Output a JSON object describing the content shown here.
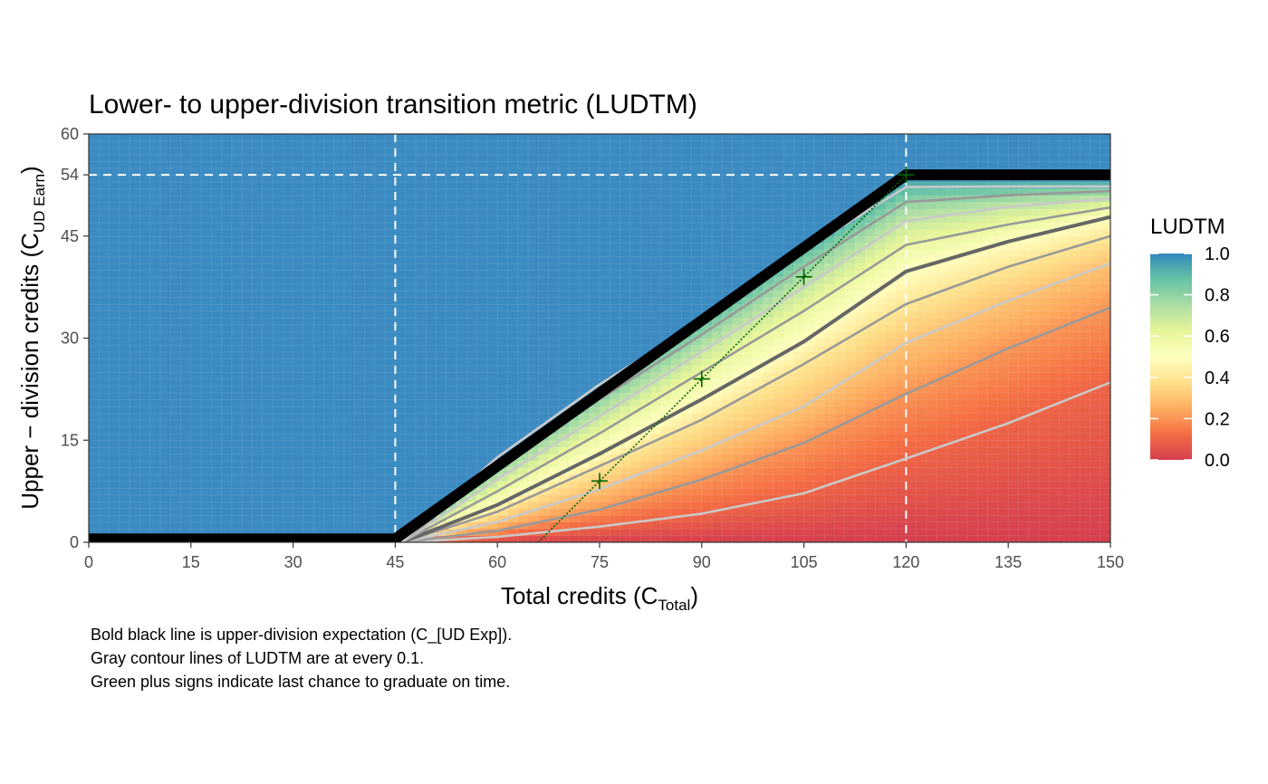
{
  "chart_data": {
    "type": "heatmap",
    "title": "Lower- to upper-division transition metric (LUDTM)",
    "xlabel": {
      "main": "Total credits (C",
      "sub": "Total",
      "close": ")"
    },
    "ylabel": {
      "main": "Upper − division credits (C",
      "sub": "UD Earn",
      "close": ")"
    },
    "xlim": [
      0,
      150
    ],
    "ylim": [
      0,
      60
    ],
    "x_ticks": [
      0,
      15,
      30,
      45,
      60,
      75,
      90,
      105,
      120,
      135,
      150
    ],
    "y_ticks": [
      0,
      15,
      30,
      45,
      54,
      60
    ],
    "grid": false,
    "reference_lines": {
      "vertical": [
        45,
        120
      ],
      "horizontal": [
        54
      ],
      "style": "white dashed"
    },
    "expectation_line": {
      "description": "bold black line",
      "points": [
        [
          0,
          0.5
        ],
        [
          45,
          0.5
        ],
        [
          120,
          54
        ],
        [
          150,
          54
        ]
      ]
    },
    "last_chance_line": {
      "color": "#006400",
      "points": [
        [
          66,
          0
        ],
        [
          120,
          54
        ]
      ],
      "markers": [
        [
          75,
          9
        ],
        [
          90,
          24
        ],
        [
          105,
          39
        ],
        [
          120,
          54
        ]
      ]
    },
    "contour_levels": [
      0.1,
      0.2,
      0.3,
      0.4,
      0.5,
      0.6,
      0.7,
      0.8,
      0.9
    ],
    "contour_lines": [
      {
        "level": 0.1,
        "points": [
          [
            46,
            0
          ],
          [
            60,
            0.8
          ],
          [
            75,
            2.3
          ],
          [
            90,
            4.2
          ],
          [
            105,
            7.2
          ],
          [
            120,
            12.3
          ],
          [
            135,
            17.5
          ],
          [
            150,
            23.5
          ]
        ]
      },
      {
        "level": 0.2,
        "points": [
          [
            46,
            0
          ],
          [
            60,
            1.7
          ],
          [
            75,
            4.8
          ],
          [
            90,
            9.2
          ],
          [
            105,
            14.6
          ],
          [
            120,
            21.8
          ],
          [
            135,
            28.5
          ],
          [
            150,
            34.5
          ]
        ]
      },
      {
        "level": 0.3,
        "points": [
          [
            46,
            0
          ],
          [
            60,
            3
          ],
          [
            75,
            7.8
          ],
          [
            90,
            13.5
          ],
          [
            105,
            20
          ],
          [
            120,
            29.3
          ],
          [
            135,
            35.5
          ],
          [
            150,
            41
          ]
        ]
      },
      {
        "level": 0.4,
        "points": [
          [
            46,
            0
          ],
          [
            60,
            4.5
          ],
          [
            75,
            11.2
          ],
          [
            90,
            18
          ],
          [
            105,
            26.2
          ],
          [
            120,
            35
          ],
          [
            135,
            40.5
          ],
          [
            150,
            45
          ]
        ]
      },
      {
        "level": 0.5,
        "points": [
          [
            46,
            0
          ],
          [
            60,
            5.5
          ],
          [
            75,
            13
          ],
          [
            90,
            21
          ],
          [
            105,
            29.5
          ],
          [
            120,
            39.8
          ],
          [
            135,
            44.2
          ],
          [
            150,
            47.8
          ]
        ]
      },
      {
        "level": 0.6,
        "points": [
          [
            46,
            0
          ],
          [
            60,
            7.5
          ],
          [
            75,
            16
          ],
          [
            90,
            25
          ],
          [
            105,
            34
          ],
          [
            120,
            43.7
          ],
          [
            135,
            46.7
          ],
          [
            150,
            49.2
          ]
        ]
      },
      {
        "level": 0.7,
        "points": [
          [
            46,
            0
          ],
          [
            60,
            9.3
          ],
          [
            75,
            18.5
          ],
          [
            90,
            28
          ],
          [
            105,
            37.5
          ],
          [
            120,
            47.2
          ],
          [
            135,
            49.3
          ],
          [
            150,
            50.5
          ]
        ]
      },
      {
        "level": 0.8,
        "points": [
          [
            46,
            0
          ],
          [
            60,
            11
          ],
          [
            75,
            21
          ],
          [
            90,
            30.5
          ],
          [
            105,
            40.5
          ],
          [
            120,
            50
          ],
          [
            135,
            51
          ],
          [
            150,
            51.6
          ]
        ]
      },
      {
        "level": 0.9,
        "points": [
          [
            46,
            0
          ],
          [
            60,
            12.5
          ],
          [
            75,
            23.2
          ],
          [
            90,
            32.5
          ],
          [
            105,
            43
          ],
          [
            120,
            52.2
          ],
          [
            135,
            52.3
          ],
          [
            150,
            52.3
          ]
        ]
      }
    ],
    "legend": {
      "title": "LUDTM",
      "placement": "right",
      "ticks": [
        0.0,
        0.2,
        0.4,
        0.6,
        0.8,
        1.0
      ],
      "tick_labels": [
        "0.0",
        "0.2",
        "0.4",
        "0.6",
        "0.8",
        "1.0"
      ]
    },
    "colors": {
      "above_expectation": "#3B8BC2",
      "scale": [
        "#D53E4F",
        "#F46D43",
        "#FDAE61",
        "#FEE08B",
        "#FFFFBF",
        "#E6F598",
        "#ABDDA4",
        "#66C2A5",
        "#3288BD"
      ],
      "reference_lines": "#ffffff",
      "expectation_line": "#000000",
      "last_chance": "#006400"
    }
  },
  "caption": [
    "Bold black line is upper-division expectation (C_[UD Exp]).",
    "Gray contour lines of LUDTM are at every 0.1.",
    "Green plus signs indicate last chance to graduate on time."
  ]
}
